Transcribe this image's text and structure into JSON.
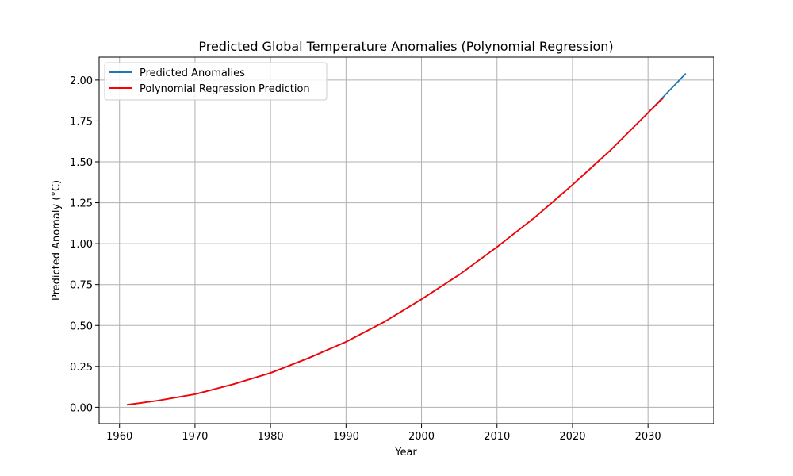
{
  "chart_data": {
    "type": "line",
    "title": "Predicted Global Temperature Anomalies (Polynomial Regression)",
    "xlabel": "Year",
    "ylabel": "Predicted Anomaly (°C)",
    "xlim": [
      1957.3,
      2038.7
    ],
    "ylim": [
      -0.1,
      2.14
    ],
    "xticks": [
      1960,
      1970,
      1980,
      1990,
      2000,
      2010,
      2020,
      2030
    ],
    "yticks": [
      0.0,
      0.25,
      0.5,
      0.75,
      1.0,
      1.25,
      1.5,
      1.75,
      2.0
    ],
    "ytick_labels": [
      "0.00",
      "0.25",
      "0.50",
      "0.75",
      "1.00",
      "1.25",
      "1.50",
      "1.75",
      "2.00"
    ],
    "grid": true,
    "legend_position": "upper-left",
    "series": [
      {
        "name": "Predicted Anomalies",
        "color": "#1f77b4",
        "x": [
          1961,
          1965,
          1970,
          1975,
          1980,
          1985,
          1990,
          1995,
          2000,
          2005,
          2010,
          2015,
          2020,
          2025,
          2030,
          2035
        ],
        "y": [
          0.015,
          0.04,
          0.08,
          0.14,
          0.21,
          0.3,
          0.4,
          0.52,
          0.66,
          0.81,
          0.98,
          1.16,
          1.36,
          1.57,
          1.8,
          2.04
        ]
      },
      {
        "name": "Polynomial Regression Prediction",
        "color": "#ff0000",
        "x": [
          1961,
          1965,
          1970,
          1975,
          1980,
          1985,
          1990,
          1995,
          2000,
          2005,
          2010,
          2015,
          2020,
          2025,
          2030,
          2032
        ],
        "y": [
          0.015,
          0.04,
          0.08,
          0.14,
          0.21,
          0.3,
          0.4,
          0.52,
          0.66,
          0.81,
          0.98,
          1.16,
          1.36,
          1.57,
          1.8,
          1.89
        ]
      }
    ]
  }
}
